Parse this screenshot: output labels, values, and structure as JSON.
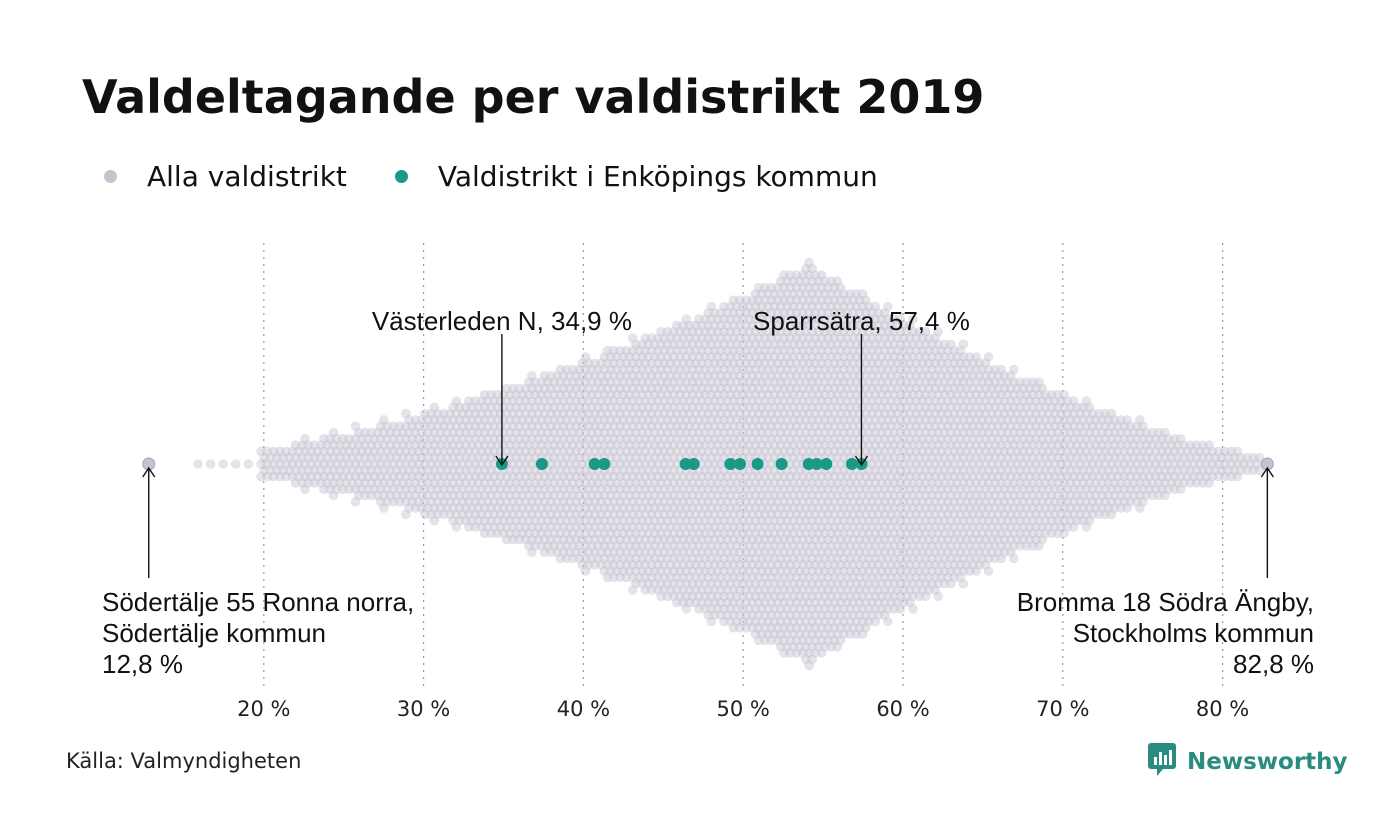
{
  "title": "Valdeltagande per valdistrikt 2019",
  "legend": [
    {
      "label": "Alla valdistrikt",
      "color": "#c5c3d0"
    },
    {
      "label": "Valdistrikt i Enköpings kommun",
      "color": "#1a9986"
    }
  ],
  "source": "Källa: Valmyndigheten",
  "brand": {
    "name": "Newsworthy",
    "color": "#2a8c7e",
    "icon": "newsworthy-logo-icon"
  },
  "chart_data": {
    "type": "scatter",
    "subtype": "beeswarm",
    "xlim": [
      12.8,
      82.8
    ],
    "x_ticks": [
      20,
      30,
      40,
      50,
      60,
      70,
      80
    ],
    "x_tick_labels": [
      "20 %",
      "30 %",
      "40 %",
      "50 %",
      "60 %",
      "70 %",
      "80 %"
    ],
    "grid": "vertical dotted",
    "series": [
      {
        "name": "Alla valdistrikt",
        "color": "#c5c3d0",
        "distribution": {
          "min": 12.8,
          "max": 82.8,
          "peak": 54
        }
      },
      {
        "name": "Valdistrikt i Enköpings kommun",
        "color": "#1a9986",
        "values": [
          34.9,
          37.4,
          40.7,
          41.3,
          46.4,
          46.9,
          49.2,
          49.8,
          50.9,
          52.4,
          54.1,
          54.6,
          55.2,
          56.8,
          57.4
        ]
      }
    ],
    "annotations": [
      {
        "lines": [
          "Västerleden N, 34,9 %"
        ],
        "x": 34.9,
        "series": "Valdistrikt i Enköpings kommun"
      },
      {
        "lines": [
          "Sparrsätra, 57,4 %"
        ],
        "x": 57.4,
        "series": "Valdistrikt i Enköpings kommun"
      },
      {
        "lines": [
          "Södertälje 55 Ronna norra,",
          "Södertälje kommun",
          "12,8 %"
        ],
        "x": 12.8,
        "series": "Alla valdistrikt"
      },
      {
        "lines": [
          "Bromma 18 Södra Ängby,",
          "Stockholms kommun",
          "82,8 %"
        ],
        "x": 82.8,
        "series": "Alla valdistrikt"
      }
    ]
  }
}
